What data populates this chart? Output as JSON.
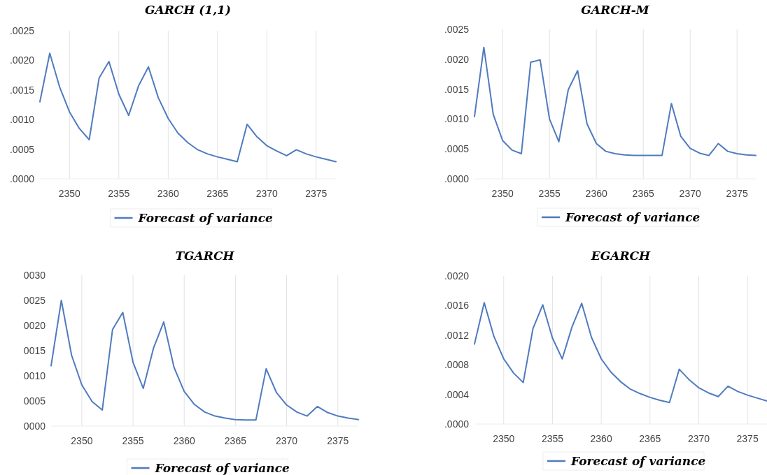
{
  "chart_data": [
    {
      "type": "line",
      "title": "GARCH (1,1)",
      "x": [
        2347,
        2348,
        2349,
        2350,
        2351,
        2352,
        2353,
        2354,
        2355,
        2356,
        2357,
        2358,
        2359,
        2360,
        2361,
        2362,
        2363,
        2364,
        2365,
        2366,
        2367,
        2368,
        2369,
        2370,
        2371,
        2372,
        2373,
        2374,
        2375,
        2376,
        2377
      ],
      "xlim": [
        2347,
        2377
      ],
      "xticks": [
        2350,
        2355,
        2360,
        2365,
        2370,
        2375
      ],
      "ylim": [
        0,
        0.0025
      ],
      "yticks": [
        {
          "value": 0,
          "label": ".0000"
        },
        {
          "value": 0.0005,
          "label": ".0005"
        },
        {
          "value": 0.001,
          "label": ".0010"
        },
        {
          "value": 0.0015,
          "label": ".0015"
        },
        {
          "value": 0.002,
          "label": ".0020"
        },
        {
          "value": 0.0025,
          "label": ".0025"
        }
      ],
      "grid": "x",
      "legend": "bottom",
      "marker": "none",
      "series": [
        {
          "name": "Forecast of variance",
          "color": "#4f7bbf",
          "values": [
            0.0013,
            0.00212,
            0.00155,
            0.00113,
            0.00085,
            0.00066,
            0.0017,
            0.00198,
            0.00143,
            0.00107,
            0.00157,
            0.00189,
            0.00137,
            0.00102,
            0.00077,
            0.00061,
            0.00049,
            0.00042,
            0.00037,
            0.00033,
            0.00029,
            0.00092,
            0.00071,
            0.00056,
            0.00047,
            0.00039,
            0.00049,
            0.00042,
            0.00037,
            0.00033,
            0.00029
          ]
        }
      ]
    },
    {
      "type": "line",
      "title": "GARCH-M",
      "x": [
        2347,
        2348,
        2349,
        2350,
        2351,
        2352,
        2353,
        2354,
        2355,
        2356,
        2357,
        2358,
        2359,
        2360,
        2361,
        2362,
        2363,
        2364,
        2365,
        2366,
        2367,
        2368,
        2369,
        2370,
        2371,
        2372,
        2373,
        2374,
        2375,
        2376,
        2377
      ],
      "xlim": [
        2347,
        2377
      ],
      "xticks": [
        2350,
        2355,
        2360,
        2365,
        2370,
        2375
      ],
      "ylim": [
        0,
        0.0025
      ],
      "yticks": [
        {
          "value": 0,
          "label": ".0000"
        },
        {
          "value": 0.0005,
          "label": ".0005"
        },
        {
          "value": 0.001,
          "label": ".0010"
        },
        {
          "value": 0.0015,
          "label": ".0015"
        },
        {
          "value": 0.002,
          "label": ".0020"
        },
        {
          "value": 0.0025,
          "label": ".0025"
        }
      ],
      "grid": "x",
      "legend": "bottom",
      "marker": "none",
      "series": [
        {
          "name": "Forecast of variance",
          "color": "#4f7bbf",
          "values": [
            0.00104,
            0.0022,
            0.00108,
            0.00064,
            0.00048,
            0.00042,
            0.00195,
            0.00199,
            0.001,
            0.00062,
            0.00149,
            0.00181,
            0.00092,
            0.00059,
            0.00046,
            0.00042,
            0.0004,
            0.00039,
            0.00039,
            0.00039,
            0.00039,
            0.00126,
            0.00071,
            0.00051,
            0.00043,
            0.00039,
            0.00059,
            0.00046,
            0.00042,
            0.0004,
            0.00039
          ]
        }
      ]
    },
    {
      "type": "line",
      "title": "TGARCH",
      "x": [
        2347,
        2348,
        2349,
        2350,
        2351,
        2352,
        2353,
        2354,
        2355,
        2356,
        2357,
        2358,
        2359,
        2360,
        2361,
        2362,
        2363,
        2364,
        2365,
        2366,
        2367,
        2368,
        2369,
        2370,
        2371,
        2372,
        2373,
        2374,
        2375,
        2376,
        2377
      ],
      "xlim": [
        2347,
        2377
      ],
      "xticks": [
        2350,
        2355,
        2360,
        2365,
        2370,
        2375
      ],
      "ylim": [
        0,
        30
      ],
      "yticks": [
        {
          "value": 0,
          "label": "0000"
        },
        {
          "value": 5,
          "label": "0005"
        },
        {
          "value": 10,
          "label": "0010"
        },
        {
          "value": 15,
          "label": "0015"
        },
        {
          "value": 20,
          "label": "0020"
        },
        {
          "value": 25,
          "label": "0025"
        },
        {
          "value": 30,
          "label": "0030"
        }
      ],
      "grid": "x",
      "legend": "bottom",
      "marker": "none",
      "series": [
        {
          "name": "Forecast of variance",
          "color": "#4f7bbf",
          "values": [
            12,
            25,
            14.1,
            8.2,
            4.9,
            3.2,
            19.2,
            22.6,
            12.7,
            7.5,
            15.5,
            20.7,
            11.7,
            6.9,
            4.3,
            2.8,
            2.0,
            1.6,
            1.3,
            1.2,
            1.2,
            11.4,
            6.7,
            4.2,
            2.8,
            2.0,
            3.9,
            2.7,
            2.0,
            1.6,
            1.3
          ]
        }
      ]
    },
    {
      "type": "line",
      "title": "EGARCH",
      "x": [
        2347,
        2348,
        2349,
        2350,
        2351,
        2352,
        2353,
        2354,
        2355,
        2356,
        2357,
        2358,
        2359,
        2360,
        2361,
        2362,
        2363,
        2364,
        2365,
        2366,
        2367,
        2368,
        2369,
        2370,
        2371,
        2372,
        2373,
        2374,
        2375,
        2376,
        2377
      ],
      "xlim": [
        2347,
        2377
      ],
      "xticks": [
        2350,
        2355,
        2360,
        2365,
        2370,
        2375
      ],
      "ylim": [
        0,
        0.002
      ],
      "yticks": [
        {
          "value": 0,
          "label": ".0000"
        },
        {
          "value": 0.0004,
          "label": ".0004"
        },
        {
          "value": 0.0008,
          "label": ".0008"
        },
        {
          "value": 0.0012,
          "label": ".0012"
        },
        {
          "value": 0.0016,
          "label": ".0016"
        },
        {
          "value": 0.002,
          "label": ".0020"
        }
      ],
      "grid": "x",
      "legend": "bottom",
      "marker": "none",
      "series": [
        {
          "name": "Forecast of variance",
          "color": "#4f7bbf",
          "values": [
            0.00108,
            0.00164,
            0.00118,
            0.00088,
            0.00069,
            0.00056,
            0.00129,
            0.00161,
            0.00116,
            0.00088,
            0.00131,
            0.00163,
            0.00117,
            0.00088,
            0.0007,
            0.00057,
            0.00047,
            0.00041,
            0.00036,
            0.00032,
            0.00029,
            0.00074,
            0.0006,
            0.00049,
            0.00042,
            0.00037,
            0.00051,
            0.00044,
            0.00039,
            0.00035,
            0.00031
          ]
        }
      ]
    }
  ]
}
